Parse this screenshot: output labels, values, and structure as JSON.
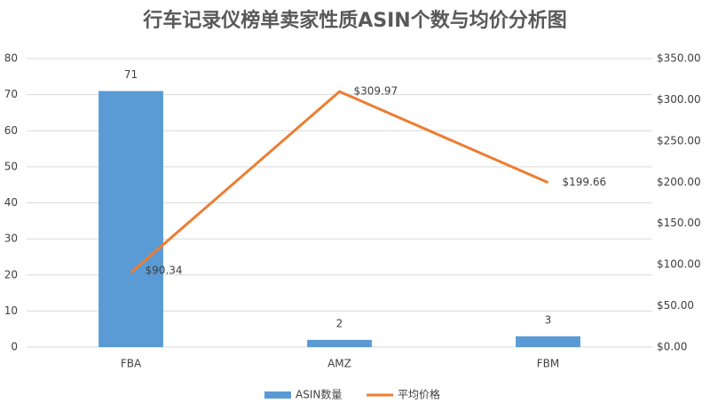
{
  "chart_data": {
    "type": "bar",
    "title": "行车记录仪榜单卖家性质ASIN个数与均价分析图",
    "categories": [
      "FBA",
      "AMZ",
      "FBM"
    ],
    "series": [
      {
        "name": "ASIN数量",
        "color": "#5b9bd5",
        "values": [
          71,
          2,
          3
        ],
        "type": "bar"
      },
      {
        "name": "平均价格",
        "color": "#ed7d31",
        "values": [
          90.34,
          309.97,
          199.66
        ],
        "value_labels": [
          "$90.34",
          "$309.97",
          "$199.66"
        ],
        "type": "line",
        "axis": "y2"
      }
    ],
    "ylim": [
      0,
      80
    ],
    "yticks": [
      0,
      10,
      20,
      30,
      40,
      50,
      60,
      70,
      80
    ],
    "y2lim": [
      0,
      350
    ],
    "y2ticks": [
      {
        "value": 0,
        "label": "$0.00"
      },
      {
        "value": 50,
        "label": "$50.00"
      },
      {
        "value": 100,
        "label": "$100.00"
      },
      {
        "value": 150,
        "label": "$150.00"
      },
      {
        "value": 200,
        "label": "$200.00"
      },
      {
        "value": 250,
        "label": "$250.00"
      },
      {
        "value": 300,
        "label": "$300.00"
      },
      {
        "value": 350,
        "label": "$350.00"
      }
    ],
    "grid": true,
    "legend": "bottom"
  }
}
